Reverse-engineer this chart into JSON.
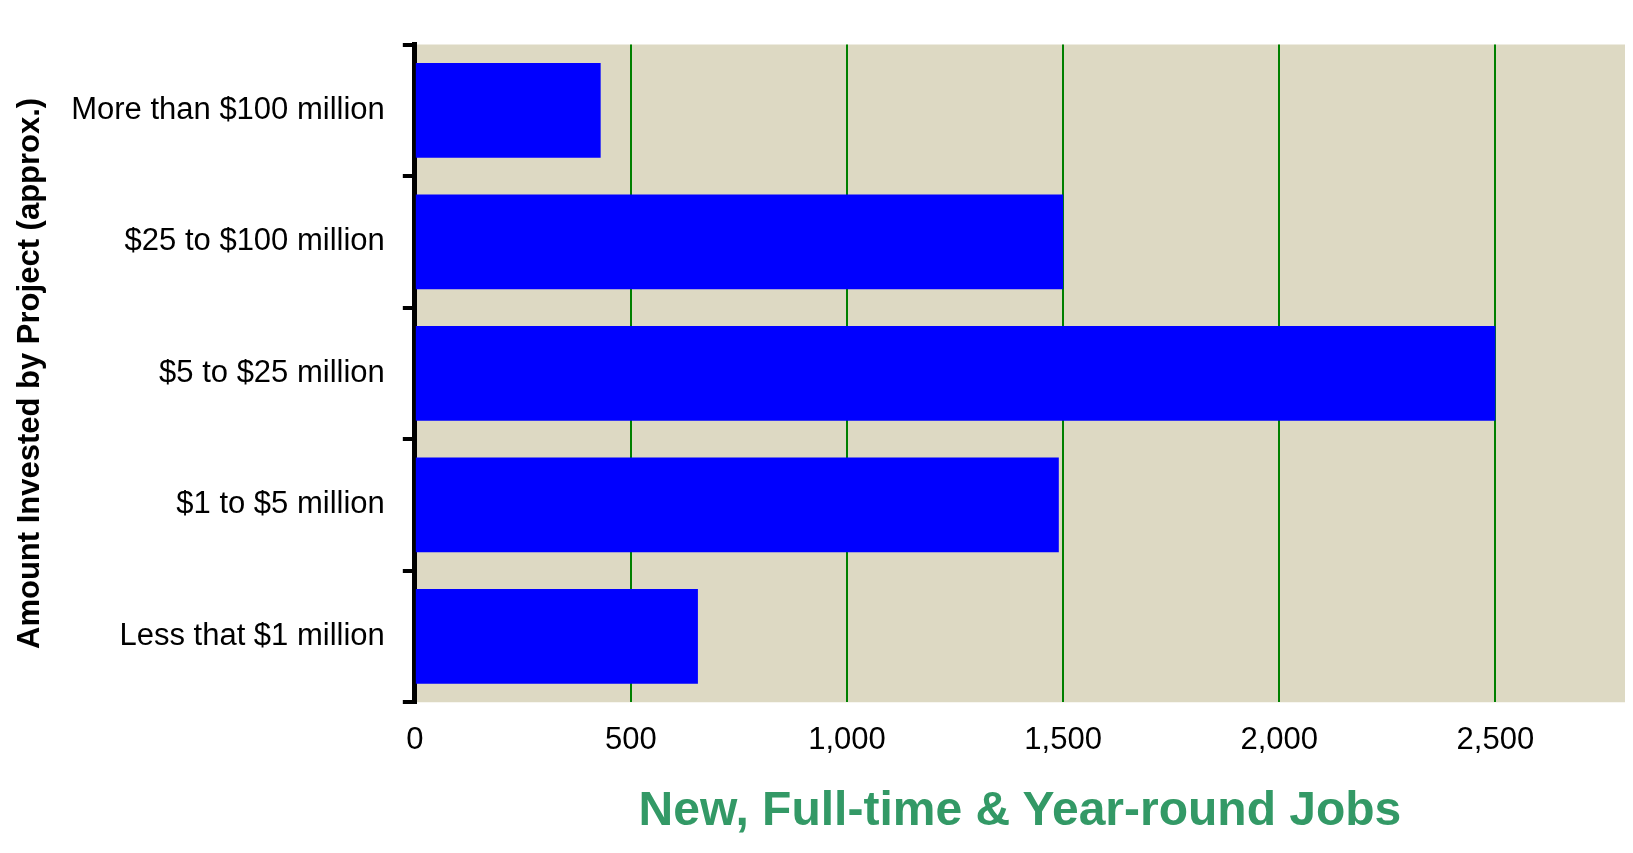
{
  "chart_data": {
    "type": "bar",
    "orientation": "horizontal",
    "xlabel": "New, Full-time & Year-round Jobs",
    "ylabel": "Amount Invested by Project (approx.)",
    "categories": [
      "More than $100 million",
      "$25 to $100 million",
      "$5 to $25 million",
      "$1 to $5 million",
      "Less that $1 million"
    ],
    "values": [
      430,
      1500,
      2500,
      1490,
      655
    ],
    "color": "#0000ff",
    "xlim": [
      0,
      2800
    ],
    "xticks": [
      0,
      500,
      {
        "value": 1000,
        "label": "1,000"
      },
      {
        "value": 1500,
        "label": "1,500"
      },
      {
        "value": 2000,
        "label": "2,000"
      },
      {
        "value": 2500,
        "label": "2,500"
      }
    ],
    "grid": "x",
    "legend": false
  }
}
